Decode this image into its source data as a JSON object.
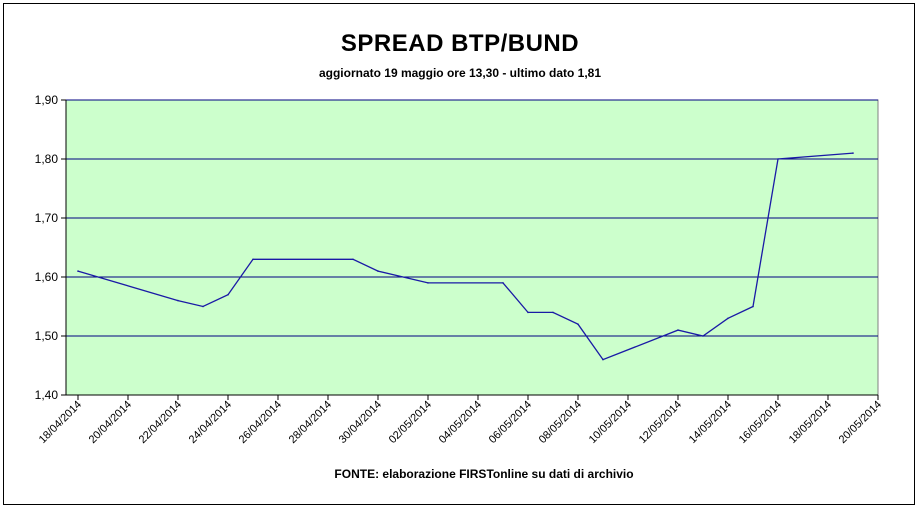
{
  "chart_data": {
    "type": "line",
    "title": "SPREAD BTP/BUND",
    "subtitle": "aggiornato 19 maggio ore 13,30 - ultimo dato 1,81",
    "source": "FONTE:  elaborazione FIRSTonline su dati di archivio",
    "xlabel": "",
    "ylabel": "",
    "ylim": [
      1.4,
      1.9
    ],
    "y_ticks": [
      "1,40",
      "1,50",
      "1,60",
      "1,70",
      "1,80",
      "1,90"
    ],
    "x_ticks": [
      "18/04/2014",
      "20/04/2014",
      "22/04/2014",
      "24/04/2014",
      "26/04/2014",
      "28/04/2014",
      "30/04/2014",
      "02/05/2014",
      "04/05/2014",
      "06/05/2014",
      "08/05/2014",
      "10/05/2014",
      "12/05/2014",
      "14/05/2014",
      "16/05/2014",
      "18/05/2014",
      "20/05/2014"
    ],
    "x_range": [
      "18/04/2014",
      "20/05/2014"
    ],
    "grid": "horizontal",
    "plot_background": "#ccffcc",
    "gridline_color": "#000080",
    "series": [
      {
        "color": "#1a1aa6",
        "points": [
          [
            "18/04/2014",
            1.61
          ],
          [
            "22/04/2014",
            1.56
          ],
          [
            "23/04/2014",
            1.55
          ],
          [
            "24/04/2014",
            1.57
          ],
          [
            "25/04/2014",
            1.63
          ],
          [
            "29/04/2014",
            1.63
          ],
          [
            "30/04/2014",
            1.61
          ],
          [
            "02/05/2014",
            1.59
          ],
          [
            "05/05/2014",
            1.59
          ],
          [
            "06/05/2014",
            1.54
          ],
          [
            "07/05/2014",
            1.54
          ],
          [
            "08/05/2014",
            1.52
          ],
          [
            "09/05/2014",
            1.46
          ],
          [
            "12/05/2014",
            1.51
          ],
          [
            "13/05/2014",
            1.5
          ],
          [
            "14/05/2014",
            1.53
          ],
          [
            "15/05/2014",
            1.55
          ],
          [
            "16/05/2014",
            1.8
          ],
          [
            "19/05/2014",
            1.81
          ]
        ]
      }
    ]
  }
}
